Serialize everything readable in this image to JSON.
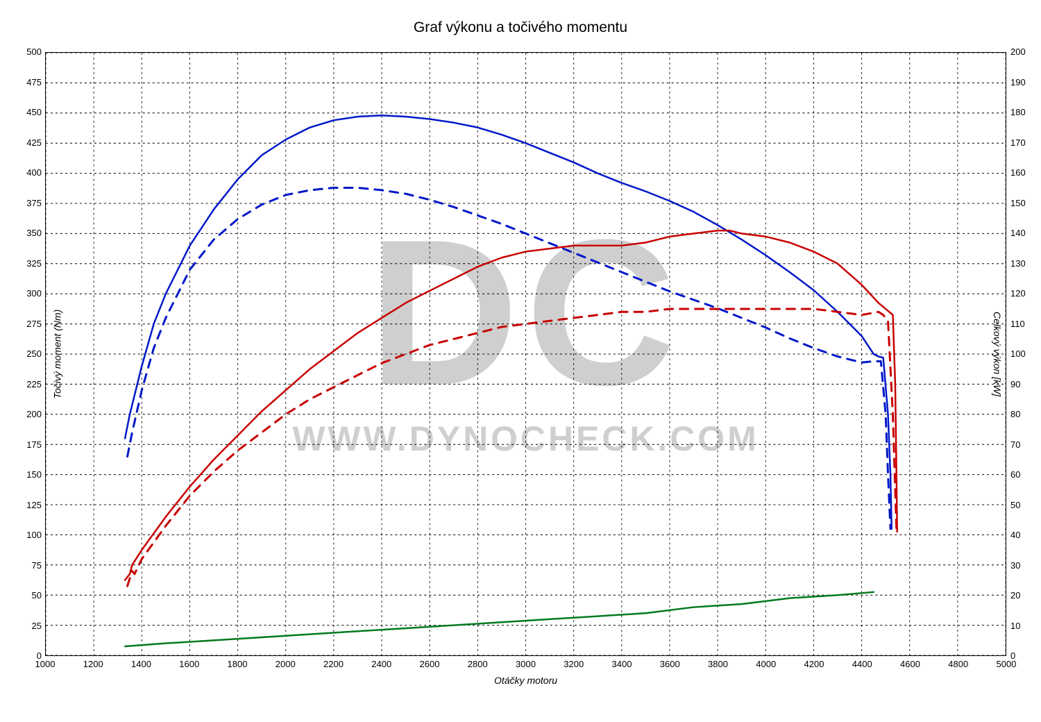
{
  "chart": {
    "type": "line",
    "title": "Graf výkonu a točivého momentu",
    "title_fontsize": 21,
    "background_color": "#ffffff",
    "plot_border_color": "#000000",
    "grid_color": "#000000",
    "grid_dash": "3,4",
    "watermark_logo": "DC",
    "watermark_text": "WWW.DYNOCHECK.COM",
    "watermark_color": "#cfcfcf",
    "x_axis": {
      "label": "Otáčky motoru",
      "min": 1000,
      "max": 5000,
      "tick_step": 200,
      "ticks": [
        1000,
        1200,
        1400,
        1600,
        1800,
        2000,
        2200,
        2400,
        2600,
        2800,
        3000,
        3200,
        3400,
        3600,
        3800,
        4000,
        4200,
        4400,
        4600,
        4800,
        5000
      ],
      "label_fontsize": 14,
      "tick_fontsize": 13
    },
    "y_left": {
      "label": "Točivý moment (Nm)",
      "min": 0,
      "max": 500,
      "tick_step": 25,
      "ticks": [
        0,
        25,
        50,
        75,
        100,
        125,
        150,
        175,
        200,
        225,
        250,
        275,
        300,
        325,
        350,
        375,
        400,
        425,
        450,
        475,
        500
      ],
      "label_fontsize": 14,
      "tick_fontsize": 13
    },
    "y_right": {
      "label": "Celkový výkon [kW]",
      "min": 0,
      "max": 200,
      "tick_step": 10,
      "ticks": [
        0,
        10,
        20,
        30,
        40,
        50,
        60,
        70,
        80,
        90,
        100,
        110,
        120,
        130,
        140,
        150,
        160,
        170,
        180,
        190,
        200
      ],
      "label_fontsize": 14,
      "tick_fontsize": 13
    },
    "series": [
      {
        "name": "torque_tuned",
        "axis": "left",
        "color": "#0018c8",
        "dash": "none",
        "width": 2.5,
        "points": [
          [
            1330,
            180
          ],
          [
            1350,
            200
          ],
          [
            1400,
            240
          ],
          [
            1450,
            275
          ],
          [
            1500,
            300
          ],
          [
            1600,
            340
          ],
          [
            1700,
            370
          ],
          [
            1800,
            395
          ],
          [
            1900,
            415
          ],
          [
            2000,
            428
          ],
          [
            2100,
            438
          ],
          [
            2200,
            444
          ],
          [
            2300,
            447
          ],
          [
            2400,
            448
          ],
          [
            2500,
            447
          ],
          [
            2600,
            445
          ],
          [
            2700,
            442
          ],
          [
            2800,
            438
          ],
          [
            2900,
            432
          ],
          [
            3000,
            425
          ],
          [
            3100,
            417
          ],
          [
            3200,
            409
          ],
          [
            3300,
            400
          ],
          [
            3400,
            392
          ],
          [
            3500,
            385
          ],
          [
            3600,
            377
          ],
          [
            3700,
            368
          ],
          [
            3800,
            357
          ],
          [
            3900,
            345
          ],
          [
            4000,
            332
          ],
          [
            4100,
            318
          ],
          [
            4200,
            303
          ],
          [
            4300,
            285
          ],
          [
            4400,
            265
          ],
          [
            4450,
            250
          ],
          [
            4470,
            248
          ],
          [
            4490,
            247
          ],
          [
            4510,
            200
          ],
          [
            4520,
            150
          ],
          [
            4525,
            105
          ]
        ]
      },
      {
        "name": "torque_stock",
        "axis": "left",
        "color": "#0018c8",
        "dash": "12,10",
        "width": 3,
        "points": [
          [
            1340,
            165
          ],
          [
            1360,
            185
          ],
          [
            1400,
            220
          ],
          [
            1450,
            255
          ],
          [
            1500,
            280
          ],
          [
            1600,
            320
          ],
          [
            1700,
            345
          ],
          [
            1800,
            362
          ],
          [
            1900,
            374
          ],
          [
            2000,
            382
          ],
          [
            2100,
            386
          ],
          [
            2200,
            388
          ],
          [
            2300,
            388
          ],
          [
            2400,
            386
          ],
          [
            2500,
            383
          ],
          [
            2600,
            378
          ],
          [
            2700,
            372
          ],
          [
            2800,
            365
          ],
          [
            2900,
            358
          ],
          [
            3000,
            350
          ],
          [
            3100,
            342
          ],
          [
            3200,
            334
          ],
          [
            3300,
            326
          ],
          [
            3400,
            318
          ],
          [
            3500,
            310
          ],
          [
            3600,
            302
          ],
          [
            3700,
            295
          ],
          [
            3800,
            288
          ],
          [
            3900,
            280
          ],
          [
            4000,
            272
          ],
          [
            4100,
            263
          ],
          [
            4200,
            255
          ],
          [
            4300,
            248
          ],
          [
            4400,
            243
          ],
          [
            4450,
            244
          ],
          [
            4480,
            244
          ],
          [
            4500,
            200
          ],
          [
            4510,
            150
          ],
          [
            4520,
            105
          ]
        ]
      },
      {
        "name": "power_tuned",
        "axis": "right",
        "color": "#c80000",
        "dash": "none",
        "width": 2.5,
        "points": [
          [
            1330,
            25
          ],
          [
            1350,
            27
          ],
          [
            1360,
            30
          ],
          [
            1400,
            35
          ],
          [
            1500,
            46
          ],
          [
            1600,
            56
          ],
          [
            1700,
            65
          ],
          [
            1800,
            73
          ],
          [
            1900,
            81
          ],
          [
            2000,
            88
          ],
          [
            2100,
            95
          ],
          [
            2200,
            101
          ],
          [
            2300,
            107
          ],
          [
            2400,
            112
          ],
          [
            2500,
            117
          ],
          [
            2600,
            121
          ],
          [
            2700,
            125
          ],
          [
            2800,
            129
          ],
          [
            2900,
            132
          ],
          [
            3000,
            134
          ],
          [
            3100,
            135
          ],
          [
            3200,
            136
          ],
          [
            3300,
            136
          ],
          [
            3400,
            136
          ],
          [
            3500,
            137
          ],
          [
            3600,
            139
          ],
          [
            3700,
            140
          ],
          [
            3800,
            141
          ],
          [
            3850,
            141
          ],
          [
            3900,
            140
          ],
          [
            4000,
            139
          ],
          [
            4100,
            137
          ],
          [
            4200,
            134
          ],
          [
            4300,
            130
          ],
          [
            4400,
            123
          ],
          [
            4470,
            117
          ],
          [
            4500,
            115
          ],
          [
            4530,
            113
          ],
          [
            4540,
            90
          ],
          [
            4545,
            60
          ],
          [
            4548,
            41
          ]
        ]
      },
      {
        "name": "power_stock",
        "axis": "right",
        "color": "#c80000",
        "dash": "12,10",
        "width": 3,
        "points": [
          [
            1340,
            23
          ],
          [
            1360,
            28
          ],
          [
            1370,
            27
          ],
          [
            1400,
            32
          ],
          [
            1500,
            43
          ],
          [
            1600,
            53
          ],
          [
            1700,
            61
          ],
          [
            1800,
            68
          ],
          [
            1900,
            74
          ],
          [
            2000,
            80
          ],
          [
            2100,
            85
          ],
          [
            2200,
            89
          ],
          [
            2300,
            93
          ],
          [
            2400,
            97
          ],
          [
            2500,
            100
          ],
          [
            2600,
            103
          ],
          [
            2700,
            105
          ],
          [
            2800,
            107
          ],
          [
            2900,
            109
          ],
          [
            3000,
            110
          ],
          [
            3100,
            111
          ],
          [
            3200,
            112
          ],
          [
            3300,
            113
          ],
          [
            3400,
            114
          ],
          [
            3500,
            114
          ],
          [
            3600,
            115
          ],
          [
            3700,
            115
          ],
          [
            3800,
            115
          ],
          [
            3900,
            115
          ],
          [
            4000,
            115
          ],
          [
            4100,
            115
          ],
          [
            4200,
            115
          ],
          [
            4300,
            114
          ],
          [
            4400,
            113
          ],
          [
            4470,
            114
          ],
          [
            4490,
            113
          ],
          [
            4510,
            111
          ],
          [
            4530,
            80
          ],
          [
            4540,
            55
          ],
          [
            4545,
            42
          ]
        ]
      },
      {
        "name": "power_gain",
        "axis": "right",
        "color": "#007a1e",
        "dash": "none",
        "width": 2.5,
        "points": [
          [
            1330,
            3
          ],
          [
            1500,
            4
          ],
          [
            1700,
            5
          ],
          [
            1900,
            6
          ],
          [
            2100,
            7
          ],
          [
            2300,
            8
          ],
          [
            2500,
            9
          ],
          [
            2700,
            10
          ],
          [
            2900,
            11
          ],
          [
            3100,
            12
          ],
          [
            3300,
            13
          ],
          [
            3500,
            14
          ],
          [
            3700,
            16
          ],
          [
            3900,
            17
          ],
          [
            4100,
            19
          ],
          [
            4300,
            20
          ],
          [
            4450,
            21
          ]
        ]
      }
    ]
  }
}
